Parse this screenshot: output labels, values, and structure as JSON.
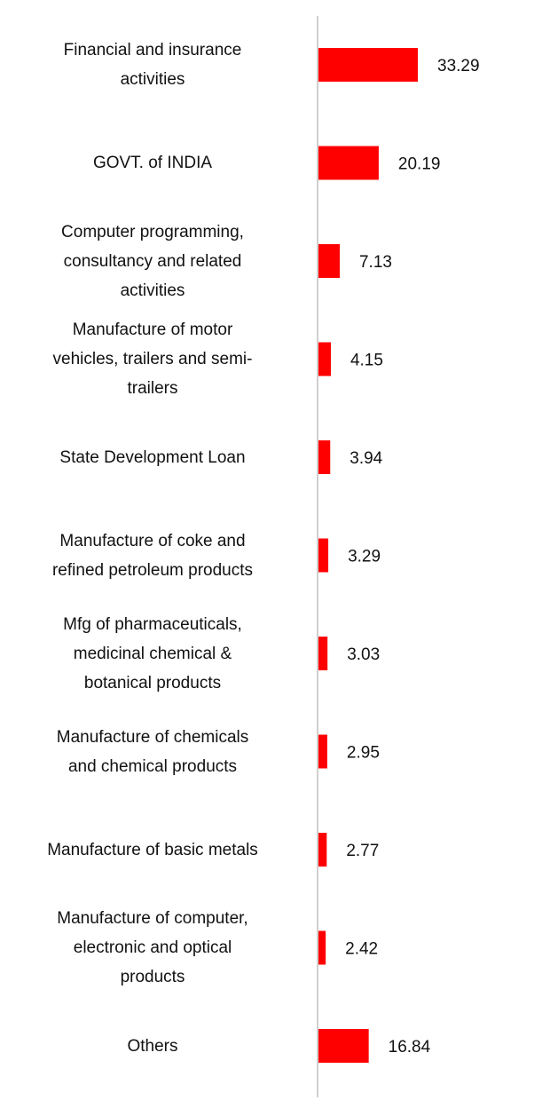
{
  "chart_data": {
    "type": "bar",
    "orientation": "horizontal",
    "title": "",
    "xlabel": "",
    "ylabel": "",
    "categories": [
      "Financial and insurance\nactivities",
      "GOVT. of INDIA",
      "Computer programming,\nconsultancy and related\nactivities",
      "Manufacture of motor\nvehicles, trailers and semi-\ntrailers",
      "State Development Loan",
      "Manufacture of coke and\nrefined petroleum products",
      "Mfg of pharmaceuticals,\nmedicinal chemical &\nbotanical products",
      "Manufacture of chemicals\nand chemical products",
      "Manufacture of basic metals",
      "Manufacture of computer,\nelectronic and optical\nproducts",
      "Others"
    ],
    "values": [
      33.29,
      20.19,
      7.13,
      4.15,
      3.94,
      3.29,
      3.03,
      2.95,
      2.77,
      2.42,
      16.84
    ],
    "data_labels": [
      "33.29",
      "20.19",
      "7.13",
      "4.15",
      "3.94",
      "3.29",
      "3.03",
      "2.95",
      "2.77",
      "2.42",
      "16.84"
    ],
    "xlim": [
      0,
      33.29
    ],
    "bar_color": "#ff0000",
    "axis_color": "#d0d0d0",
    "grid": false,
    "legend": "none"
  }
}
